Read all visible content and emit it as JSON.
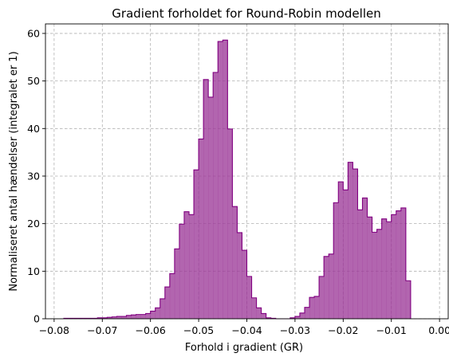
{
  "chart_data": {
    "type": "histogram",
    "title": "Gradient forholdet for Round-Robin modellen",
    "xlabel": "Forhold i gradient (GR)",
    "ylabel": "Normaliseret antal hændelser (integralet er 1)",
    "xlim": [
      -0.0818,
      0.0018
    ],
    "ylim": [
      0,
      62
    ],
    "xticks": [
      -0.08,
      -0.07,
      -0.06,
      -0.05,
      -0.04,
      -0.03,
      -0.02,
      -0.01,
      0.0
    ],
    "xtick_labels": [
      "−0.08",
      "−0.07",
      "−0.06",
      "−0.05",
      "−0.04",
      "−0.03",
      "−0.02",
      "−0.01",
      "0.00"
    ],
    "yticks": [
      0,
      10,
      20,
      30,
      40,
      50,
      60
    ],
    "ytick_labels": [
      "0",
      "10",
      "20",
      "30",
      "40",
      "50",
      "60"
    ],
    "grid": true,
    "fill_color": "#9c3a98",
    "edge_color": "#800080",
    "bin_start": -0.078,
    "bin_width": 0.001,
    "values": [
      0.1,
      0.1,
      0.1,
      0.1,
      0.1,
      0.1,
      0.1,
      0.2,
      0.2,
      0.3,
      0.4,
      0.5,
      0.5,
      0.7,
      0.8,
      0.9,
      0.9,
      1.1,
      1.6,
      2.3,
      4.2,
      6.7,
      9.5,
      14.7,
      19.9,
      22.5,
      21.9,
      31.3,
      37.8,
      50.3,
      46.6,
      51.8,
      58.3,
      58.6,
      39.9,
      23.6,
      18.1,
      14.4,
      8.9,
      4.4,
      2.3,
      1.1,
      0.2,
      0.1,
      0,
      0,
      0,
      0.2,
      0.5,
      1.2,
      2.4,
      4.5,
      4.7,
      8.9,
      13.1,
      13.6,
      24.4,
      28.8,
      27.1,
      32.9,
      31.5,
      22.9,
      25.4,
      21.4,
      18.2,
      18.8,
      21.0,
      20.4,
      21.9,
      22.7,
      23.3,
      8.0
    ]
  }
}
